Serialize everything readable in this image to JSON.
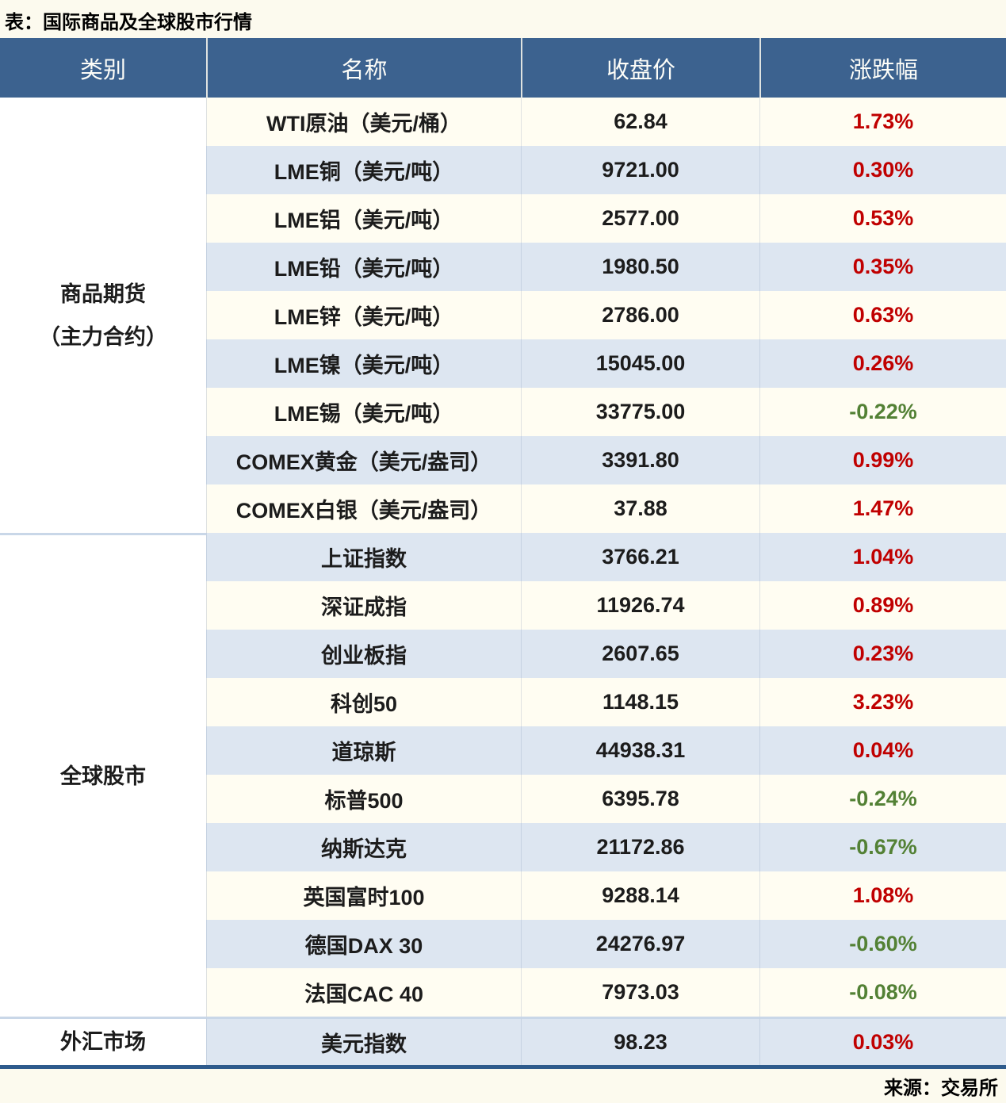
{
  "page": {
    "title": "表：国际商品及全球股市行情",
    "source": "来源：交易所"
  },
  "colors": {
    "header_bg": "#3c628f",
    "header_text": "#fdfdf8",
    "row_band_cream": "#fffdf2",
    "row_band_blue": "#dde6f1",
    "category_bg": "#ffffff",
    "group_divider": "#c9d7e8",
    "bottom_border": "#2e5b8c",
    "up_red": "#c00000",
    "down_green": "#538135",
    "page_bg": "#fcfaee"
  },
  "chart_data": {
    "type": "table",
    "title": "表：国际商品及全球股市行情",
    "columns": [
      "类别",
      "名称",
      "收盘价",
      "涨跌幅"
    ],
    "groups": [
      {
        "category": "商品期货（主力合约）",
        "category_lines": [
          "商品期货",
          "（主力合约）"
        ],
        "rows": [
          {
            "name": "WTI原油（美元/桶）",
            "close": "62.84",
            "change": "1.73%"
          },
          {
            "name": "LME铜（美元/吨）",
            "close": "9721.00",
            "change": "0.30%"
          },
          {
            "name": "LME铝（美元/吨）",
            "close": "2577.00",
            "change": "0.53%"
          },
          {
            "name": "LME铅（美元/吨）",
            "close": "1980.50",
            "change": "0.35%"
          },
          {
            "name": "LME锌（美元/吨）",
            "close": "2786.00",
            "change": "0.63%"
          },
          {
            "name": "LME镍（美元/吨）",
            "close": "15045.00",
            "change": "0.26%"
          },
          {
            "name": "LME锡（美元/吨）",
            "close": "33775.00",
            "change": "-0.22%"
          },
          {
            "name": "COMEX黄金（美元/盎司）",
            "close": "3391.80",
            "change": "0.99%"
          },
          {
            "name": "COMEX白银（美元/盎司）",
            "close": "37.88",
            "change": "1.47%"
          }
        ]
      },
      {
        "category": "全球股市",
        "category_lines": [
          "全球股市"
        ],
        "rows": [
          {
            "name": "上证指数",
            "close": "3766.21",
            "change": "1.04%"
          },
          {
            "name": "深证成指",
            "close": "11926.74",
            "change": "0.89%"
          },
          {
            "name": "创业板指",
            "close": "2607.65",
            "change": "0.23%"
          },
          {
            "name": "科创50",
            "close": "1148.15",
            "change": "3.23%"
          },
          {
            "name": "道琼斯",
            "close": "44938.31",
            "change": "0.04%"
          },
          {
            "name": "标普500",
            "close": "6395.78",
            "change": "-0.24%"
          },
          {
            "name": "纳斯达克",
            "close": "21172.86",
            "change": "-0.67%"
          },
          {
            "name": "英国富时100",
            "close": "9288.14",
            "change": "1.08%"
          },
          {
            "name": "德国DAX 30",
            "close": "24276.97",
            "change": "-0.60%"
          },
          {
            "name": "法国CAC 40",
            "close": "7973.03",
            "change": "-0.08%"
          }
        ]
      },
      {
        "category": "外汇市场",
        "category_lines": [
          "外汇市场"
        ],
        "rows": [
          {
            "name": "美元指数",
            "close": "98.23",
            "change": "0.03%"
          }
        ]
      }
    ],
    "legend_note": "red = up, green = down",
    "source": "来源：交易所"
  }
}
